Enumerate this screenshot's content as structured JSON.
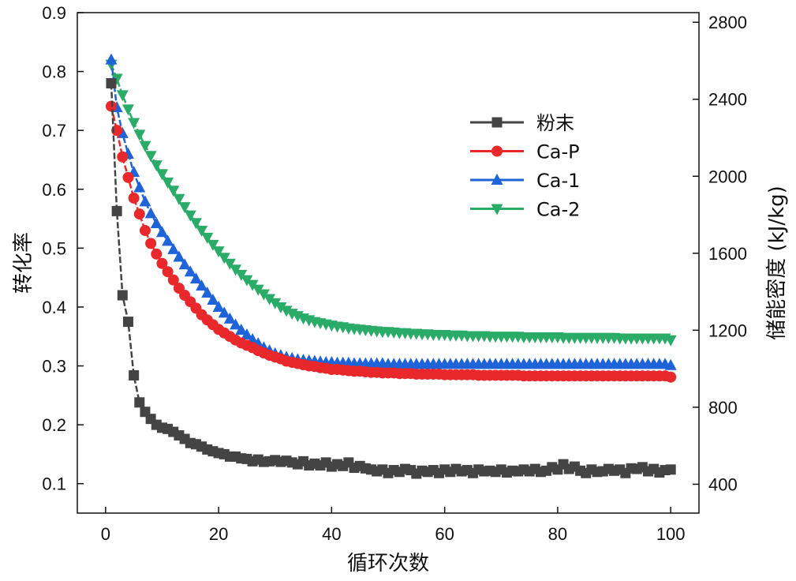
{
  "chart_data": {
    "type": "line",
    "title": "",
    "xlabel": "循环次数",
    "ylabel": "转化率",
    "y2label": "储能密度 (kJ/kg)",
    "xlim": [
      -5,
      105
    ],
    "ylim": [
      0.05,
      0.9
    ],
    "y2lim": [
      250,
      2850
    ],
    "xticks": [
      0,
      20,
      40,
      60,
      80,
      100
    ],
    "yticks": [
      0.1,
      0.2,
      0.3,
      0.4,
      0.5,
      0.6,
      0.7,
      0.8,
      0.9
    ],
    "y2ticks": [
      400,
      800,
      1200,
      1600,
      2000,
      2400,
      2800
    ],
    "legend_position": "upper-right",
    "x": [
      1,
      2,
      3,
      4,
      5,
      6,
      7,
      8,
      9,
      10,
      11,
      12,
      13,
      14,
      15,
      16,
      17,
      18,
      19,
      20,
      21,
      22,
      23,
      24,
      25,
      26,
      27,
      28,
      29,
      30,
      31,
      32,
      33,
      34,
      35,
      36,
      37,
      38,
      39,
      40,
      41,
      42,
      43,
      44,
      45,
      46,
      47,
      48,
      49,
      50,
      51,
      52,
      53,
      54,
      55,
      56,
      57,
      58,
      59,
      60,
      61,
      62,
      63,
      64,
      65,
      66,
      67,
      68,
      69,
      70,
      71,
      72,
      73,
      74,
      75,
      76,
      77,
      78,
      79,
      80,
      81,
      82,
      83,
      84,
      85,
      86,
      87,
      88,
      89,
      90,
      91,
      92,
      93,
      94,
      95,
      96,
      97,
      98,
      99,
      100
    ],
    "series": [
      {
        "name": "粉末",
        "color": "#444444",
        "marker": "square",
        "values": [
          0.78,
          0.563,
          0.42,
          0.375,
          0.284,
          0.238,
          0.222,
          0.21,
          0.2,
          0.195,
          0.193,
          0.188,
          0.182,
          0.176,
          0.169,
          0.167,
          0.163,
          0.158,
          0.155,
          0.152,
          0.15,
          0.146,
          0.146,
          0.143,
          0.142,
          0.138,
          0.141,
          0.137,
          0.138,
          0.14,
          0.137,
          0.139,
          0.136,
          0.133,
          0.138,
          0.131,
          0.134,
          0.131,
          0.136,
          0.129,
          0.133,
          0.13,
          0.136,
          0.127,
          0.13,
          0.126,
          0.124,
          0.121,
          0.124,
          0.118,
          0.123,
          0.12,
          0.125,
          0.123,
          0.117,
          0.122,
          0.12,
          0.123,
          0.118,
          0.124,
          0.12,
          0.125,
          0.121,
          0.123,
          0.118,
          0.124,
          0.121,
          0.122,
          0.12,
          0.124,
          0.119,
          0.122,
          0.121,
          0.124,
          0.121,
          0.125,
          0.12,
          0.122,
          0.128,
          0.124,
          0.133,
          0.125,
          0.129,
          0.122,
          0.118,
          0.124,
          0.12,
          0.121,
          0.125,
          0.122,
          0.124,
          0.118,
          0.126,
          0.125,
          0.128,
          0.121,
          0.125,
          0.119,
          0.123,
          0.124
        ]
      },
      {
        "name": "Ca-P",
        "color": "#e8282b",
        "marker": "circle",
        "values": [
          0.741,
          0.7,
          0.655,
          0.62,
          0.585,
          0.558,
          0.53,
          0.508,
          0.49,
          0.474,
          0.46,
          0.446,
          0.432,
          0.42,
          0.409,
          0.398,
          0.387,
          0.378,
          0.37,
          0.362,
          0.356,
          0.35,
          0.344,
          0.339,
          0.335,
          0.331,
          0.326,
          0.322,
          0.318,
          0.315,
          0.312,
          0.308,
          0.306,
          0.304,
          0.302,
          0.3,
          0.299,
          0.297,
          0.296,
          0.294,
          0.294,
          0.293,
          0.292,
          0.291,
          0.291,
          0.29,
          0.289,
          0.289,
          0.288,
          0.288,
          0.288,
          0.287,
          0.287,
          0.287,
          0.286,
          0.286,
          0.286,
          0.286,
          0.286,
          0.285,
          0.285,
          0.285,
          0.285,
          0.285,
          0.285,
          0.284,
          0.284,
          0.284,
          0.284,
          0.284,
          0.284,
          0.284,
          0.284,
          0.283,
          0.283,
          0.283,
          0.283,
          0.283,
          0.283,
          0.283,
          0.283,
          0.283,
          0.283,
          0.283,
          0.283,
          0.283,
          0.283,
          0.283,
          0.283,
          0.283,
          0.283,
          0.283,
          0.283,
          0.283,
          0.283,
          0.283,
          0.283,
          0.283,
          0.283,
          0.281
        ]
      },
      {
        "name": "Ca-1",
        "color": "#1f63d8",
        "marker": "triangle-up",
        "values": [
          0.82,
          0.739,
          0.695,
          0.66,
          0.629,
          0.603,
          0.579,
          0.559,
          0.542,
          0.527,
          0.512,
          0.498,
          0.485,
          0.472,
          0.46,
          0.448,
          0.436,
          0.424,
          0.412,
          0.4,
          0.39,
          0.38,
          0.37,
          0.361,
          0.353,
          0.345,
          0.338,
          0.331,
          0.326,
          0.321,
          0.318,
          0.315,
          0.313,
          0.311,
          0.31,
          0.309,
          0.308,
          0.307,
          0.306,
          0.306,
          0.305,
          0.305,
          0.305,
          0.304,
          0.304,
          0.304,
          0.304,
          0.304,
          0.304,
          0.303,
          0.303,
          0.303,
          0.303,
          0.303,
          0.303,
          0.303,
          0.303,
          0.303,
          0.303,
          0.303,
          0.303,
          0.303,
          0.303,
          0.303,
          0.303,
          0.303,
          0.303,
          0.303,
          0.303,
          0.303,
          0.303,
          0.303,
          0.303,
          0.303,
          0.303,
          0.303,
          0.303,
          0.303,
          0.303,
          0.303,
          0.303,
          0.303,
          0.303,
          0.303,
          0.303,
          0.303,
          0.303,
          0.303,
          0.303,
          0.303,
          0.303,
          0.303,
          0.303,
          0.303,
          0.303,
          0.303,
          0.303,
          0.303,
          0.303,
          0.301
        ]
      },
      {
        "name": "Ca-2",
        "color": "#2bab68",
        "marker": "triangle-down",
        "values": [
          0.812,
          0.788,
          0.76,
          0.736,
          0.713,
          0.693,
          0.674,
          0.657,
          0.641,
          0.626,
          0.612,
          0.598,
          0.584,
          0.57,
          0.556,
          0.543,
          0.53,
          0.518,
          0.506,
          0.495,
          0.484,
          0.474,
          0.464,
          0.455,
          0.446,
          0.438,
          0.43,
          0.422,
          0.414,
          0.407,
          0.4,
          0.394,
          0.389,
          0.385,
          0.381,
          0.378,
          0.375,
          0.373,
          0.371,
          0.369,
          0.367,
          0.366,
          0.364,
          0.363,
          0.362,
          0.361,
          0.36,
          0.359,
          0.358,
          0.358,
          0.357,
          0.356,
          0.356,
          0.355,
          0.355,
          0.354,
          0.354,
          0.353,
          0.353,
          0.353,
          0.352,
          0.352,
          0.352,
          0.351,
          0.351,
          0.351,
          0.351,
          0.35,
          0.35,
          0.35,
          0.35,
          0.35,
          0.35,
          0.349,
          0.349,
          0.349,
          0.349,
          0.349,
          0.349,
          0.349,
          0.348,
          0.348,
          0.348,
          0.348,
          0.348,
          0.348,
          0.348,
          0.348,
          0.348,
          0.348,
          0.347,
          0.347,
          0.347,
          0.347,
          0.347,
          0.347,
          0.347,
          0.347,
          0.347,
          0.344
        ]
      }
    ]
  }
}
